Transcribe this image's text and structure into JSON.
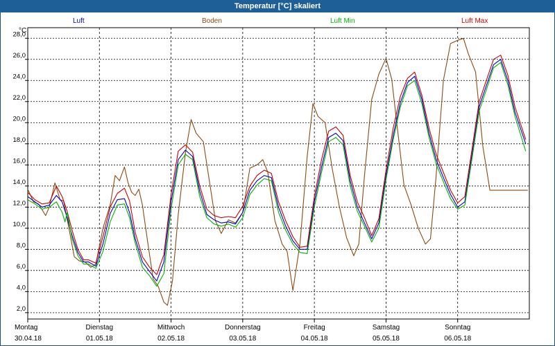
{
  "title": "Temperatur [°C] skaliert",
  "unit": "°C",
  "legend": [
    {
      "label": "Luft",
      "color": "#0000c8"
    },
    {
      "label": "Boden",
      "color": "#8b4a10"
    },
    {
      "label": "Luft Min",
      "color": "#00b400"
    },
    {
      "label": "Luft Max",
      "color": "#c80000"
    }
  ],
  "chart_data": {
    "type": "line",
    "title": "Temperatur [°C] skaliert",
    "ylabel": "°C",
    "ylim": [
      1.4,
      29.0
    ],
    "xlim": [
      0,
      7.0
    ],
    "yticks": [
      "28,0",
      "26,0",
      "24,0",
      "22,0",
      "20,0",
      "18,0",
      "16,0",
      "14,0",
      "12,0",
      "10,0",
      "8,0",
      "6,0",
      "4,0",
      "2,0"
    ],
    "ytick_values": [
      28,
      26,
      24,
      22,
      20,
      18,
      16,
      14,
      12,
      10,
      8,
      6,
      4,
      2
    ],
    "days": [
      {
        "name": "Montag",
        "date": "30.04.18"
      },
      {
        "name": "Dienstag",
        "date": "01.05.18"
      },
      {
        "name": "Mittwoch",
        "date": "02.05.18"
      },
      {
        "name": "Donnerstag",
        "date": "03.05.18"
      },
      {
        "name": "Freitag",
        "date": "04.05.18"
      },
      {
        "name": "Samstag",
        "date": "05.05.18"
      },
      {
        "name": "Sonntag",
        "date": "06.05.18"
      }
    ],
    "series": [
      {
        "name": "Boden",
        "color": "#8b4a10",
        "x": [
          0,
          0.08,
          0.15,
          0.25,
          0.3,
          0.38,
          0.45,
          0.5,
          0.58,
          0.65,
          0.72,
          0.8,
          0.88,
          0.95,
          1.05,
          1.15,
          1.22,
          1.28,
          1.35,
          1.4,
          1.45,
          1.5,
          1.55,
          1.6,
          1.68,
          1.75,
          1.82,
          1.9,
          1.95,
          2.02,
          2.1,
          2.2,
          2.28,
          2.35,
          2.45,
          2.55,
          2.62,
          2.7,
          2.8,
          2.9,
          3.0,
          3.1,
          3.2,
          3.28,
          3.35,
          3.45,
          3.55,
          3.62,
          3.7,
          3.8,
          3.9,
          3.98,
          4.05,
          4.15,
          4.25,
          4.35,
          4.45,
          4.55,
          4.62,
          4.7,
          4.8,
          4.9,
          5.0,
          5.08,
          5.15,
          5.25,
          5.35,
          5.45,
          5.55,
          5.62,
          5.7,
          5.8,
          5.9,
          6.0,
          6.08,
          6.15,
          6.25,
          6.35,
          6.45,
          6.55,
          6.6,
          6.65,
          6.72,
          6.78,
          6.85,
          6.92,
          6.98
        ],
        "values": [
          13.7,
          12.5,
          12.3,
          11.2,
          12.0,
          14.3,
          12.7,
          12.6,
          9.8,
          7.3,
          6.9,
          6.8,
          6.3,
          6.6,
          10.0,
          12.2,
          15.0,
          14.5,
          15.8,
          14.3,
          13.4,
          13.1,
          13.7,
          12.2,
          8.4,
          5.2,
          4.5,
          3.0,
          2.7,
          5.0,
          11.3,
          17.1,
          20.3,
          19.0,
          18.2,
          13.8,
          10.7,
          9.5,
          10.8,
          10.5,
          11.5,
          15.7,
          16.0,
          16.5,
          15.3,
          10.7,
          8.5,
          7.8,
          4.1,
          8.6,
          16.8,
          21.8,
          20.6,
          20.0,
          15.6,
          12.0,
          9.1,
          7.4,
          8.5,
          15.0,
          22.2,
          24.6,
          26.1,
          24.1,
          20.0,
          14.1,
          12.2,
          10.0,
          8.5,
          9.0,
          15.0,
          24.0,
          27.5,
          27.8,
          28.0,
          26.5,
          24.8,
          17.8,
          13.6,
          13.6,
          13.6,
          13.6,
          13.6,
          13.6,
          13.6,
          13.6,
          13.6
        ]
      },
      {
        "name": "Luft",
        "color": "#0000c8",
        "x": [
          0,
          0.1,
          0.2,
          0.3,
          0.4,
          0.48,
          0.55,
          0.62,
          0.7,
          0.78,
          0.85,
          0.95,
          1.05,
          1.15,
          1.25,
          1.35,
          1.42,
          1.5,
          1.6,
          1.7,
          1.8,
          1.9,
          2.0,
          2.1,
          2.2,
          2.3,
          2.4,
          2.5,
          2.6,
          2.7,
          2.8,
          2.9,
          3.0,
          3.1,
          3.2,
          3.3,
          3.4,
          3.5,
          3.6,
          3.7,
          3.8,
          3.9,
          4.0,
          4.1,
          4.2,
          4.3,
          4.4,
          4.5,
          4.6,
          4.7,
          4.8,
          4.9,
          5.0,
          5.1,
          5.2,
          5.3,
          5.4,
          5.5,
          5.6,
          5.7,
          5.8,
          5.9,
          6.0,
          6.1,
          6.2,
          6.3,
          6.4,
          6.5,
          6.6,
          6.7,
          6.8,
          6.95
        ],
        "values": [
          13.0,
          12.5,
          12.0,
          12.2,
          13.1,
          12.5,
          11.0,
          9.3,
          7.7,
          6.8,
          6.8,
          6.4,
          8.5,
          11.4,
          12.7,
          12.8,
          11.5,
          9.0,
          6.8,
          5.9,
          5.0,
          6.8,
          12.5,
          16.5,
          17.4,
          16.8,
          13.5,
          11.3,
          10.8,
          10.5,
          10.6,
          10.4,
          11.5,
          13.6,
          14.5,
          15.0,
          14.8,
          12.0,
          10.2,
          8.8,
          8.0,
          8.0,
          12.5,
          15.8,
          18.6,
          19.0,
          18.3,
          14.5,
          12.0,
          10.5,
          9.0,
          10.5,
          15.0,
          18.8,
          21.9,
          23.8,
          24.4,
          22.2,
          19.0,
          16.5,
          14.8,
          13.2,
          12.0,
          12.5,
          17.0,
          21.5,
          23.5,
          25.5,
          26.0,
          24.0,
          21.0,
          18.0
        ]
      },
      {
        "name": "Luft Max",
        "color": "#c80000",
        "x": [
          0,
          0.1,
          0.2,
          0.3,
          0.4,
          0.48,
          0.55,
          0.62,
          0.7,
          0.78,
          0.85,
          0.95,
          1.05,
          1.15,
          1.25,
          1.35,
          1.42,
          1.5,
          1.6,
          1.7,
          1.8,
          1.9,
          2.0,
          2.1,
          2.2,
          2.3,
          2.4,
          2.5,
          2.6,
          2.7,
          2.8,
          2.9,
          3.0,
          3.1,
          3.2,
          3.3,
          3.4,
          3.5,
          3.6,
          3.7,
          3.8,
          3.9,
          4.0,
          4.1,
          4.2,
          4.3,
          4.4,
          4.5,
          4.6,
          4.7,
          4.8,
          4.9,
          5.0,
          5.1,
          5.2,
          5.3,
          5.4,
          5.5,
          5.6,
          5.7,
          5.8,
          5.9,
          6.0,
          6.1,
          6.2,
          6.3,
          6.4,
          6.5,
          6.6,
          6.7,
          6.8,
          6.95
        ],
        "values": [
          13.4,
          12.7,
          12.3,
          12.4,
          14.0,
          13.0,
          11.6,
          9.8,
          8.0,
          7.0,
          7.0,
          6.7,
          9.2,
          12.0,
          13.3,
          13.8,
          12.6,
          9.6,
          7.3,
          6.3,
          5.6,
          7.5,
          13.2,
          17.3,
          17.9,
          17.2,
          14.0,
          11.8,
          11.2,
          11.0,
          11.1,
          11.0,
          12.1,
          14.0,
          15.0,
          15.5,
          15.2,
          12.5,
          10.7,
          9.2,
          8.2,
          8.3,
          13.0,
          16.5,
          19.2,
          19.6,
          18.8,
          15.0,
          12.5,
          11.0,
          9.3,
          10.9,
          15.5,
          19.5,
          22.5,
          24.2,
          24.8,
          22.6,
          19.5,
          17.0,
          15.3,
          13.6,
          12.4,
          13.0,
          17.5,
          22.0,
          24.0,
          26.0,
          26.4,
          24.5,
          21.5,
          18.4
        ]
      },
      {
        "name": "Luft Min",
        "color": "#00b400",
        "x": [
          0,
          0.1,
          0.2,
          0.3,
          0.4,
          0.48,
          0.52,
          0.55,
          0.62,
          0.7,
          0.78,
          0.85,
          0.95,
          1.05,
          1.15,
          1.25,
          1.35,
          1.42,
          1.5,
          1.6,
          1.7,
          1.8,
          1.9,
          2.0,
          2.1,
          2.2,
          2.3,
          2.4,
          2.5,
          2.6,
          2.7,
          2.8,
          2.9,
          3.0,
          3.1,
          3.2,
          3.3,
          3.4,
          3.5,
          3.6,
          3.7,
          3.8,
          3.9,
          4.0,
          4.1,
          4.2,
          4.3,
          4.4,
          4.5,
          4.6,
          4.7,
          4.8,
          4.9,
          5.0,
          5.1,
          5.2,
          5.3,
          5.4,
          5.5,
          5.6,
          5.7,
          5.8,
          5.9,
          6.0,
          6.1,
          6.2,
          6.3,
          6.4,
          6.5,
          6.6,
          6.7,
          6.8,
          6.95
        ],
        "values": [
          12.7,
          12.3,
          11.8,
          12.0,
          12.5,
          11.5,
          10.6,
          11.5,
          9.0,
          7.4,
          6.6,
          6.6,
          6.2,
          7.8,
          10.6,
          12.2,
          12.3,
          11.0,
          8.6,
          6.3,
          5.5,
          4.5,
          5.7,
          11.8,
          16.0,
          17.0,
          16.5,
          13.0,
          11.0,
          10.4,
          10.2,
          10.4,
          10.1,
          11.0,
          13.2,
          14.1,
          14.7,
          14.5,
          11.5,
          9.8,
          8.5,
          7.7,
          7.6,
          12.0,
          15.3,
          18.2,
          18.6,
          17.9,
          14.0,
          11.6,
          10.2,
          8.7,
          10.0,
          14.6,
          18.4,
          21.5,
          23.5,
          24.0,
          21.8,
          18.6,
          16.1,
          14.4,
          12.8,
          11.8,
          12.2,
          16.6,
          21.1,
          23.1,
          25.2,
          25.7,
          23.6,
          20.6,
          17.3
        ]
      }
    ]
  }
}
